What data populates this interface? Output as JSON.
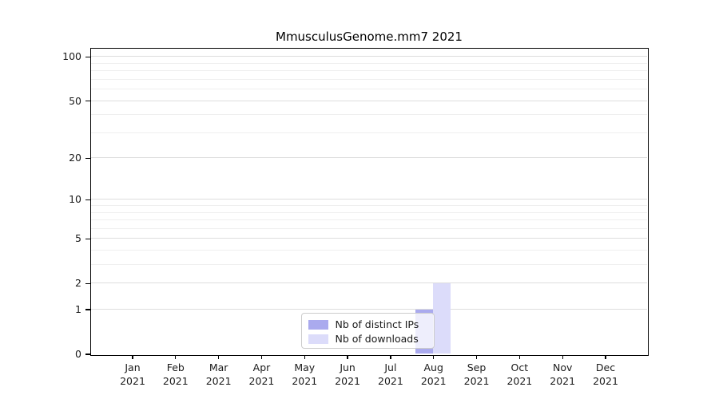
{
  "chart_data": {
    "type": "bar",
    "title": "MmusculusGenome.mm7 2021",
    "categories": [
      "Jan 2021",
      "Feb 2021",
      "Mar 2021",
      "Apr 2021",
      "May 2021",
      "Jun 2021",
      "Jul 2021",
      "Aug 2021",
      "Sep 2021",
      "Oct 2021",
      "Nov 2021",
      "Dec 2021"
    ],
    "series": [
      {
        "name": "Nb of distinct IPs",
        "color": "#aaaaee",
        "values": [
          0,
          0,
          0,
          0,
          0,
          0,
          0,
          1,
          0,
          0,
          0,
          0
        ]
      },
      {
        "name": "Nb of downloads",
        "color": "#dcdcfa",
        "values": [
          0,
          0,
          0,
          0,
          0,
          0,
          0,
          2,
          0,
          0,
          0,
          0
        ]
      }
    ],
    "yscale": "log1p",
    "ylim": [
      0,
      113
    ],
    "major_yticks": [
      0,
      1,
      2,
      5,
      10,
      20,
      50,
      100
    ],
    "minor_yticks": [
      3,
      4,
      6,
      7,
      8,
      9,
      30,
      40,
      60,
      70,
      80,
      90
    ],
    "grid": true,
    "legend": {
      "position": "lower center",
      "entries": [
        "Nb of distinct IPs",
        "Nb of downloads"
      ]
    }
  },
  "colors": {
    "major_grid": "#dddddd",
    "minor_grid": "#efefef",
    "spine": "#000000",
    "text": "#1a1a1a",
    "legend_border": "#cccccc"
  }
}
